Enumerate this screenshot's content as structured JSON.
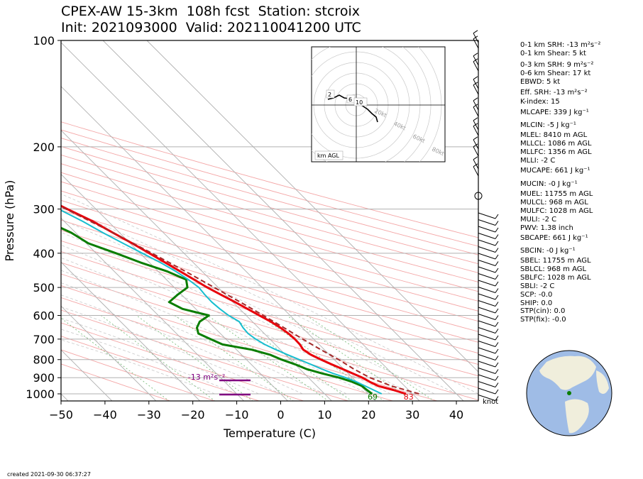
{
  "title": {
    "line1": "CPEX-AW 15-3km  108h fcst  Station: stcroix",
    "line2": "Init: 2021093000  Valid: 202110041200 UTC"
  },
  "chart_data": {
    "type": "line",
    "title": "CPEX-AW 15-3km  108h fcst  Station: stcroix",
    "xlabel": "Temperature (C)",
    "ylabel": "Pressure (hPa)",
    "xlim": [
      -50,
      45
    ],
    "ylim": [
      1050,
      100
    ],
    "yscale": "log",
    "x_ticks": [
      "−50",
      "−40",
      "−30",
      "−20",
      "−10",
      "0",
      "10",
      "20",
      "30",
      "40"
    ],
    "x_tick_values": [
      -50,
      -40,
      -30,
      -20,
      -10,
      0,
      10,
      20,
      30,
      40
    ],
    "y_ticks": [
      "100",
      "200",
      "300",
      "400",
      "500",
      "600",
      "700",
      "800",
      "900",
      "1000"
    ],
    "y_tick_values": [
      100,
      200,
      300,
      400,
      500,
      600,
      700,
      800,
      900,
      1000
    ],
    "grid": true,
    "series": [
      {
        "role": "temperature",
        "color": "#e8000b",
        "points": [
          [
            1000,
            28.5
          ],
          [
            975,
            26.5
          ],
          [
            950,
            24
          ],
          [
            925,
            23
          ],
          [
            900,
            22.3
          ],
          [
            875,
            21
          ],
          [
            850,
            19.7
          ],
          [
            825,
            18.3
          ],
          [
            800,
            17
          ],
          [
            775,
            15.8
          ],
          [
            750,
            15.2
          ],
          [
            725,
            15.6
          ],
          [
            700,
            15.7
          ],
          [
            675,
            15.5
          ],
          [
            650,
            15
          ],
          [
            625,
            14.2
          ],
          [
            600,
            13
          ],
          [
            575,
            11.8
          ],
          [
            550,
            10.5
          ],
          [
            525,
            9
          ],
          [
            500,
            7.5
          ],
          [
            475,
            6.3
          ],
          [
            450,
            5
          ],
          [
            425,
            3.6
          ],
          [
            400,
            2.1
          ],
          [
            375,
            0.5
          ],
          [
            350,
            -1.5
          ],
          [
            325,
            -3.5
          ],
          [
            300,
            -6.5
          ],
          [
            275,
            -9.5
          ],
          [
            250,
            -13
          ],
          [
            225,
            -17
          ],
          [
            200,
            -21
          ],
          [
            175,
            -26
          ],
          [
            150,
            -31.5
          ],
          [
            125,
            -38.5
          ],
          [
            100,
            -47
          ]
        ]
      },
      {
        "role": "dewpoint",
        "color": "#0a7d00",
        "points": [
          [
            1000,
            20.8
          ],
          [
            975,
            20.5
          ],
          [
            950,
            20.3
          ],
          [
            925,
            19
          ],
          [
            900,
            17
          ],
          [
            875,
            14
          ],
          [
            850,
            11.5
          ],
          [
            825,
            10
          ],
          [
            800,
            8
          ],
          [
            775,
            6.5
          ],
          [
            750,
            3.5
          ],
          [
            725,
            -2
          ],
          [
            700,
            -3.5
          ],
          [
            675,
            -5
          ],
          [
            650,
            -4
          ],
          [
            625,
            -2
          ],
          [
            600,
            1.5
          ],
          [
            575,
            -3
          ],
          [
            550,
            -4.5
          ],
          [
            525,
            -1
          ],
          [
            500,
            3
          ],
          [
            475,
            4.5
          ],
          [
            450,
            2
          ],
          [
            425,
            -2
          ],
          [
            400,
            -5.5
          ],
          [
            375,
            -9.5
          ],
          [
            350,
            -11
          ],
          [
            325,
            -14
          ],
          [
            300,
            -14.5
          ],
          [
            275,
            -15.5
          ],
          [
            250,
            -19
          ],
          [
            225,
            -21.5
          ],
          [
            200,
            -23
          ],
          [
            175,
            -26
          ],
          [
            150,
            -29.5
          ],
          [
            125,
            -34
          ],
          [
            100,
            -38
          ]
        ]
      },
      {
        "role": "wetbulb",
        "color": "#17becf",
        "points": [
          [
            1000,
            23
          ],
          [
            975,
            22
          ],
          [
            950,
            21
          ],
          [
            925,
            20
          ],
          [
            900,
            18.5
          ],
          [
            875,
            16.5
          ],
          [
            850,
            15
          ],
          [
            825,
            13.6
          ],
          [
            800,
            12
          ],
          [
            775,
            10.5
          ],
          [
            750,
            9
          ],
          [
            725,
            7.6
          ],
          [
            700,
            6.8
          ],
          [
            675,
            6.3
          ],
          [
            650,
            6.5
          ],
          [
            625,
            7
          ],
          [
            600,
            6
          ],
          [
            575,
            5.5
          ],
          [
            550,
            5.2
          ],
          [
            525,
            5.3
          ],
          [
            500,
            5.6
          ],
          [
            475,
            5
          ],
          [
            450,
            4
          ],
          [
            425,
            2.5
          ],
          [
            400,
            0.5
          ],
          [
            375,
            -1.6
          ],
          [
            350,
            -3.8
          ],
          [
            325,
            -5.8
          ],
          [
            300,
            -8.5
          ],
          [
            275,
            -11
          ],
          [
            250,
            -14
          ],
          [
            225,
            -17.5
          ],
          [
            200,
            -21.2
          ],
          [
            175,
            -25.6
          ],
          [
            150,
            -30.5
          ],
          [
            125,
            -35.8
          ],
          [
            100,
            -40.5
          ]
        ]
      },
      {
        "role": "parcel",
        "color": "#a52a2a",
        "points": [
          [
            1000,
            31.5
          ],
          [
            950,
            27
          ],
          [
            900,
            24
          ],
          [
            850,
            22.3
          ],
          [
            800,
            21
          ],
          [
            750,
            19.2
          ],
          [
            700,
            17.5
          ],
          [
            650,
            15.8
          ],
          [
            600,
            13.9
          ],
          [
            550,
            11.7
          ],
          [
            500,
            9.1
          ],
          [
            450,
            6.2
          ],
          [
            400,
            2.7
          ],
          [
            350,
            -1.5
          ],
          [
            300,
            -6.8
          ],
          [
            250,
            -13.5
          ],
          [
            200,
            -22
          ],
          [
            175,
            -27
          ],
          [
            150,
            -32.5
          ],
          [
            125,
            -39.5
          ],
          [
            100,
            -48
          ]
        ]
      }
    ],
    "annotations": [
      {
        "text": "69",
        "color": "#0a7d00",
        "temperature": 20.3,
        "pressure": 1018
      },
      {
        "text": "83",
        "color": "#e8000b",
        "temperature": 28.5,
        "pressure": 1018
      },
      {
        "text": "-13 m²s⁻²",
        "color": "#800080",
        "temperature": -13,
        "pressure": 895
      }
    ],
    "wind_barb_units": "knot",
    "hodograph": {
      "rings": [
        "20kt",
        "40kt",
        "60kt",
        "80kt"
      ],
      "height_labels": [
        "2",
        "6",
        "10"
      ],
      "label": "km AGL"
    }
  },
  "indices": [
    "0-1 km SRH: -13 m²s⁻²",
    "0-1 km Shear: 5 kt",
    "0-3 km SRH: 9 m²s⁻²",
    "0-6 km Shear: 17 kt",
    "EBWD: 5 kt",
    "Eff. SRH: -13 m²s⁻²",
    "K-index: 15",
    "MLCAPE: 339 J kg⁻¹",
    "MLCIN: -5 J kg⁻¹",
    "MLEL: 8410 m AGL",
    "MLLCL: 1086 m AGL",
    "MLLFC: 1356 m AGL",
    "MLLI: -2 C",
    "MUCAPE: 661 J kg⁻¹",
    "MUCIN: -0 J kg⁻¹",
    "MUEL: 11755 m AGL",
    "MULCL: 968 m AGL",
    "MULFC: 1028 m AGL",
    "MULI: -2 C",
    "PWV: 1.38 inch",
    "SBCAPE: 661 J kg⁻¹",
    "SBCIN: -0 J kg⁻¹",
    "SBEL: 11755 m AGL",
    "SBLCL: 968 m AGL",
    "SBLFC: 1028 m AGL",
    "SBLI: -2 C",
    "SCP: -0.0",
    "SHIP: 0.0",
    "STP(cin): 0.0",
    "STP(fix): -0.0"
  ],
  "created": "created 2021-09-30 06:37:27",
  "colors": {
    "isobar": "#b0b0b0",
    "dry_adiabat": "#f4a6a6",
    "moist_adiabat": "#c8c8c8",
    "mixing_ratio": "#7fbf7f",
    "ocean": "#9fbce6",
    "land": "#f0eedc"
  }
}
